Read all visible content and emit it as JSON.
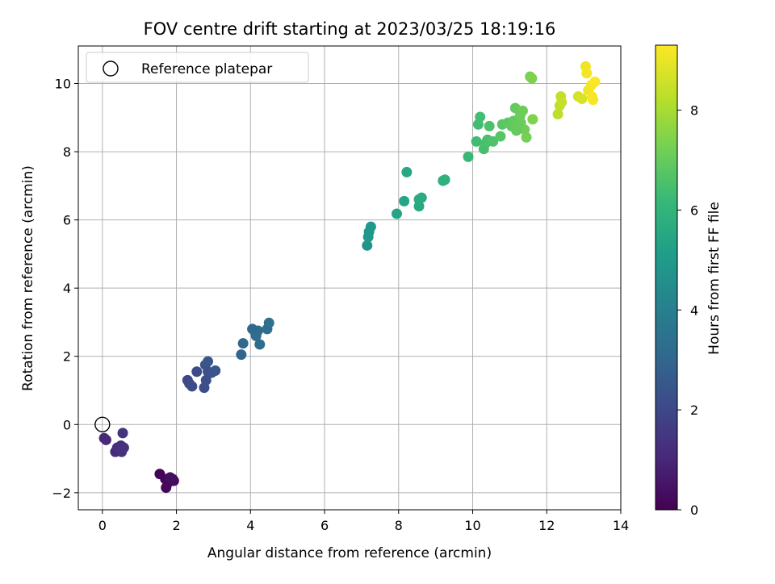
{
  "chart_data": {
    "type": "scatter",
    "title": "FOV centre drift starting at 2023/03/25 18:19:16",
    "xlabel": "Angular distance from reference (arcmin)",
    "ylabel": "Rotation from reference (arcmin)",
    "xlim": [
      -0.65,
      14.0
    ],
    "ylim": [
      -2.5,
      11.1
    ],
    "xticks": [
      0,
      2,
      4,
      6,
      8,
      10,
      12,
      14
    ],
    "yticks": [
      -2,
      0,
      2,
      4,
      6,
      8,
      10
    ],
    "grid": true,
    "legend": {
      "placement": "upper-left",
      "entries": [
        {
          "label": "Reference platepar",
          "marker": "open-circle",
          "x": 0,
          "y": 0
        }
      ]
    },
    "colorbar": {
      "label": "Hours from first FF file",
      "colormap": "viridis",
      "range": [
        0,
        9.3
      ],
      "ticks": [
        0,
        2,
        4,
        6,
        8
      ]
    },
    "series": [
      {
        "x": [
          1.55,
          1.7,
          1.72,
          1.78,
          1.9,
          1.93,
          1.83,
          0.1,
          0.05,
          0.35,
          0.45,
          0.5,
          0.4,
          0.52,
          0.58,
          0.55,
          2.3,
          2.35,
          2.42,
          2.55,
          2.75,
          2.8,
          2.85,
          2.78,
          2.95,
          3.05,
          2.85,
          3.75,
          3.8,
          4.05,
          4.1,
          4.2,
          4.15,
          4.25,
          4.45,
          4.5,
          7.15,
          7.2,
          7.25,
          7.18,
          7.95,
          8.15,
          8.22,
          8.55,
          8.62,
          8.55,
          9.2,
          9.25,
          9.88,
          10.1,
          10.15,
          10.2,
          10.3,
          10.35,
          10.4,
          10.45,
          10.55,
          10.75,
          10.8,
          10.95,
          11.05,
          11.1,
          11.15,
          11.25,
          11.3,
          11.35,
          11.4,
          11.45,
          11.55,
          11.6,
          11.62,
          11.18,
          11.22,
          11.28,
          12.3,
          12.35,
          12.38,
          12.4,
          12.85,
          12.95,
          13.05,
          13.08,
          13.12,
          13.2,
          13.25,
          13.3,
          13.22
        ],
        "y": [
          -1.45,
          -1.6,
          -1.85,
          -1.7,
          -1.6,
          -1.65,
          -1.55,
          -0.45,
          -0.4,
          -0.8,
          -0.75,
          -0.62,
          -0.68,
          -0.8,
          -0.68,
          -0.25,
          1.3,
          1.2,
          1.12,
          1.55,
          1.08,
          1.3,
          1.55,
          1.75,
          1.52,
          1.58,
          1.85,
          2.05,
          2.38,
          2.8,
          2.75,
          2.75,
          2.6,
          2.35,
          2.8,
          2.98,
          5.25,
          5.65,
          5.8,
          5.5,
          6.18,
          6.55,
          7.4,
          6.4,
          6.65,
          6.6,
          7.15,
          7.18,
          7.85,
          8.3,
          8.8,
          9.02,
          8.08,
          8.25,
          8.35,
          8.75,
          8.3,
          8.45,
          8.8,
          8.85,
          8.75,
          8.9,
          9.28,
          8.7,
          8.85,
          9.2,
          8.65,
          8.42,
          10.2,
          10.15,
          8.95,
          8.62,
          8.8,
          9.05,
          9.1,
          9.35,
          9.62,
          9.45,
          9.62,
          9.55,
          10.5,
          10.3,
          9.8,
          9.95,
          9.52,
          10.05,
          9.62
        ],
        "c": [
          0.05,
          0.1,
          0.15,
          0.2,
          0.25,
          0.3,
          0.35,
          1.0,
          1.05,
          1.1,
          1.15,
          1.2,
          1.25,
          1.3,
          1.35,
          1.4,
          2.0,
          2.05,
          2.1,
          2.15,
          2.2,
          2.25,
          2.3,
          2.35,
          2.4,
          2.45,
          2.5,
          3.0,
          3.05,
          3.1,
          3.15,
          3.2,
          3.25,
          3.3,
          3.35,
          3.4,
          4.8,
          4.85,
          4.9,
          4.95,
          5.45,
          5.5,
          5.55,
          5.6,
          5.65,
          5.7,
          5.9,
          5.95,
          6.25,
          6.4,
          6.42,
          6.45,
          6.5,
          6.55,
          6.6,
          6.62,
          6.7,
          6.8,
          6.85,
          6.9,
          6.95,
          7.0,
          7.05,
          7.1,
          7.15,
          7.2,
          7.25,
          7.3,
          7.4,
          7.45,
          7.5,
          7.05,
          7.1,
          7.15,
          8.35,
          8.4,
          8.45,
          8.5,
          8.7,
          8.75,
          9.1,
          9.15,
          9.1,
          9.15,
          9.2,
          9.25,
          9.2
        ]
      }
    ]
  }
}
